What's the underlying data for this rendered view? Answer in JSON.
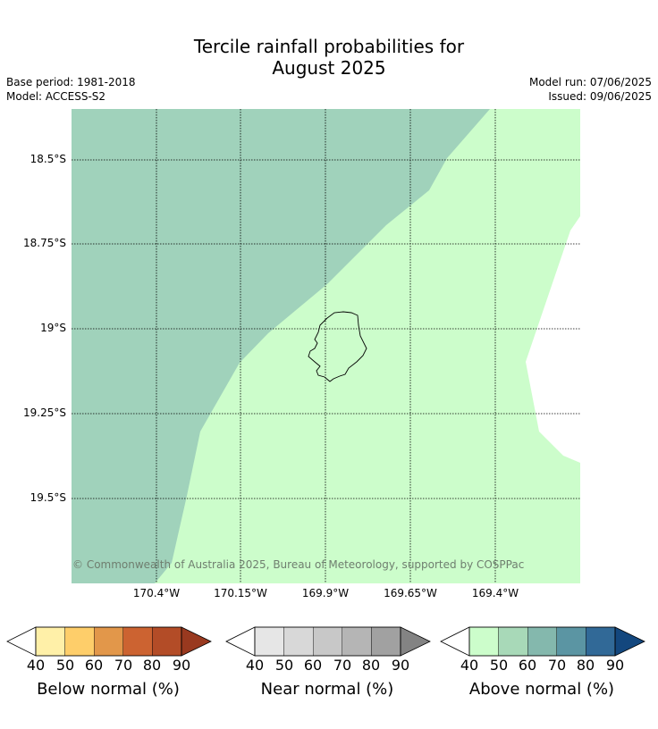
{
  "title": {
    "line1": "Tercile rainfall probabilities for",
    "line2": "August 2025"
  },
  "meta": {
    "base_period": "Base period: 1981-2018",
    "model": "Model: ACCESS-S2",
    "model_run": "Model run: 07/06/2025",
    "issued": "Issued: 09/06/2025"
  },
  "map": {
    "lat_labels": [
      "18.5°S",
      "18.75°S",
      "19°S",
      "19.25°S",
      "19.5°S"
    ],
    "lon_labels": [
      "170.4°W",
      "170.15°W",
      "169.9°W",
      "169.65°W",
      "169.4°W"
    ],
    "credit": "© Commonwealth of Australia 2025, Bureau of Meteorology, supported by COSPPac",
    "region_colors": {
      "above_50_60": "#a0d2bb",
      "above_40_50": "#ccfdcb",
      "grid": "#000000"
    }
  },
  "colorbars": [
    {
      "caption": "Below normal (%)",
      "ticks": [
        "40",
        "50",
        "60",
        "70",
        "80",
        "90"
      ],
      "colors": [
        "#fff0a8",
        "#fece6a",
        "#e2974a",
        "#cc6331",
        "#b34c27",
        "#99391f"
      ]
    },
    {
      "caption": "Near normal (%)",
      "ticks": [
        "40",
        "50",
        "60",
        "70",
        "80",
        "90"
      ],
      "colors": [
        "#e6e6e6",
        "#d8d8d8",
        "#c8c8c8",
        "#b5b5b5",
        "#a1a1a1",
        "#838383"
      ]
    },
    {
      "caption": "Above normal (%)",
      "ticks": [
        "40",
        "50",
        "60",
        "70",
        "80",
        "90"
      ],
      "colors": [
        "#ccfdcb",
        "#a8d9b8",
        "#84b8ad",
        "#5b95a3",
        "#316997",
        "#13477e"
      ]
    }
  ]
}
